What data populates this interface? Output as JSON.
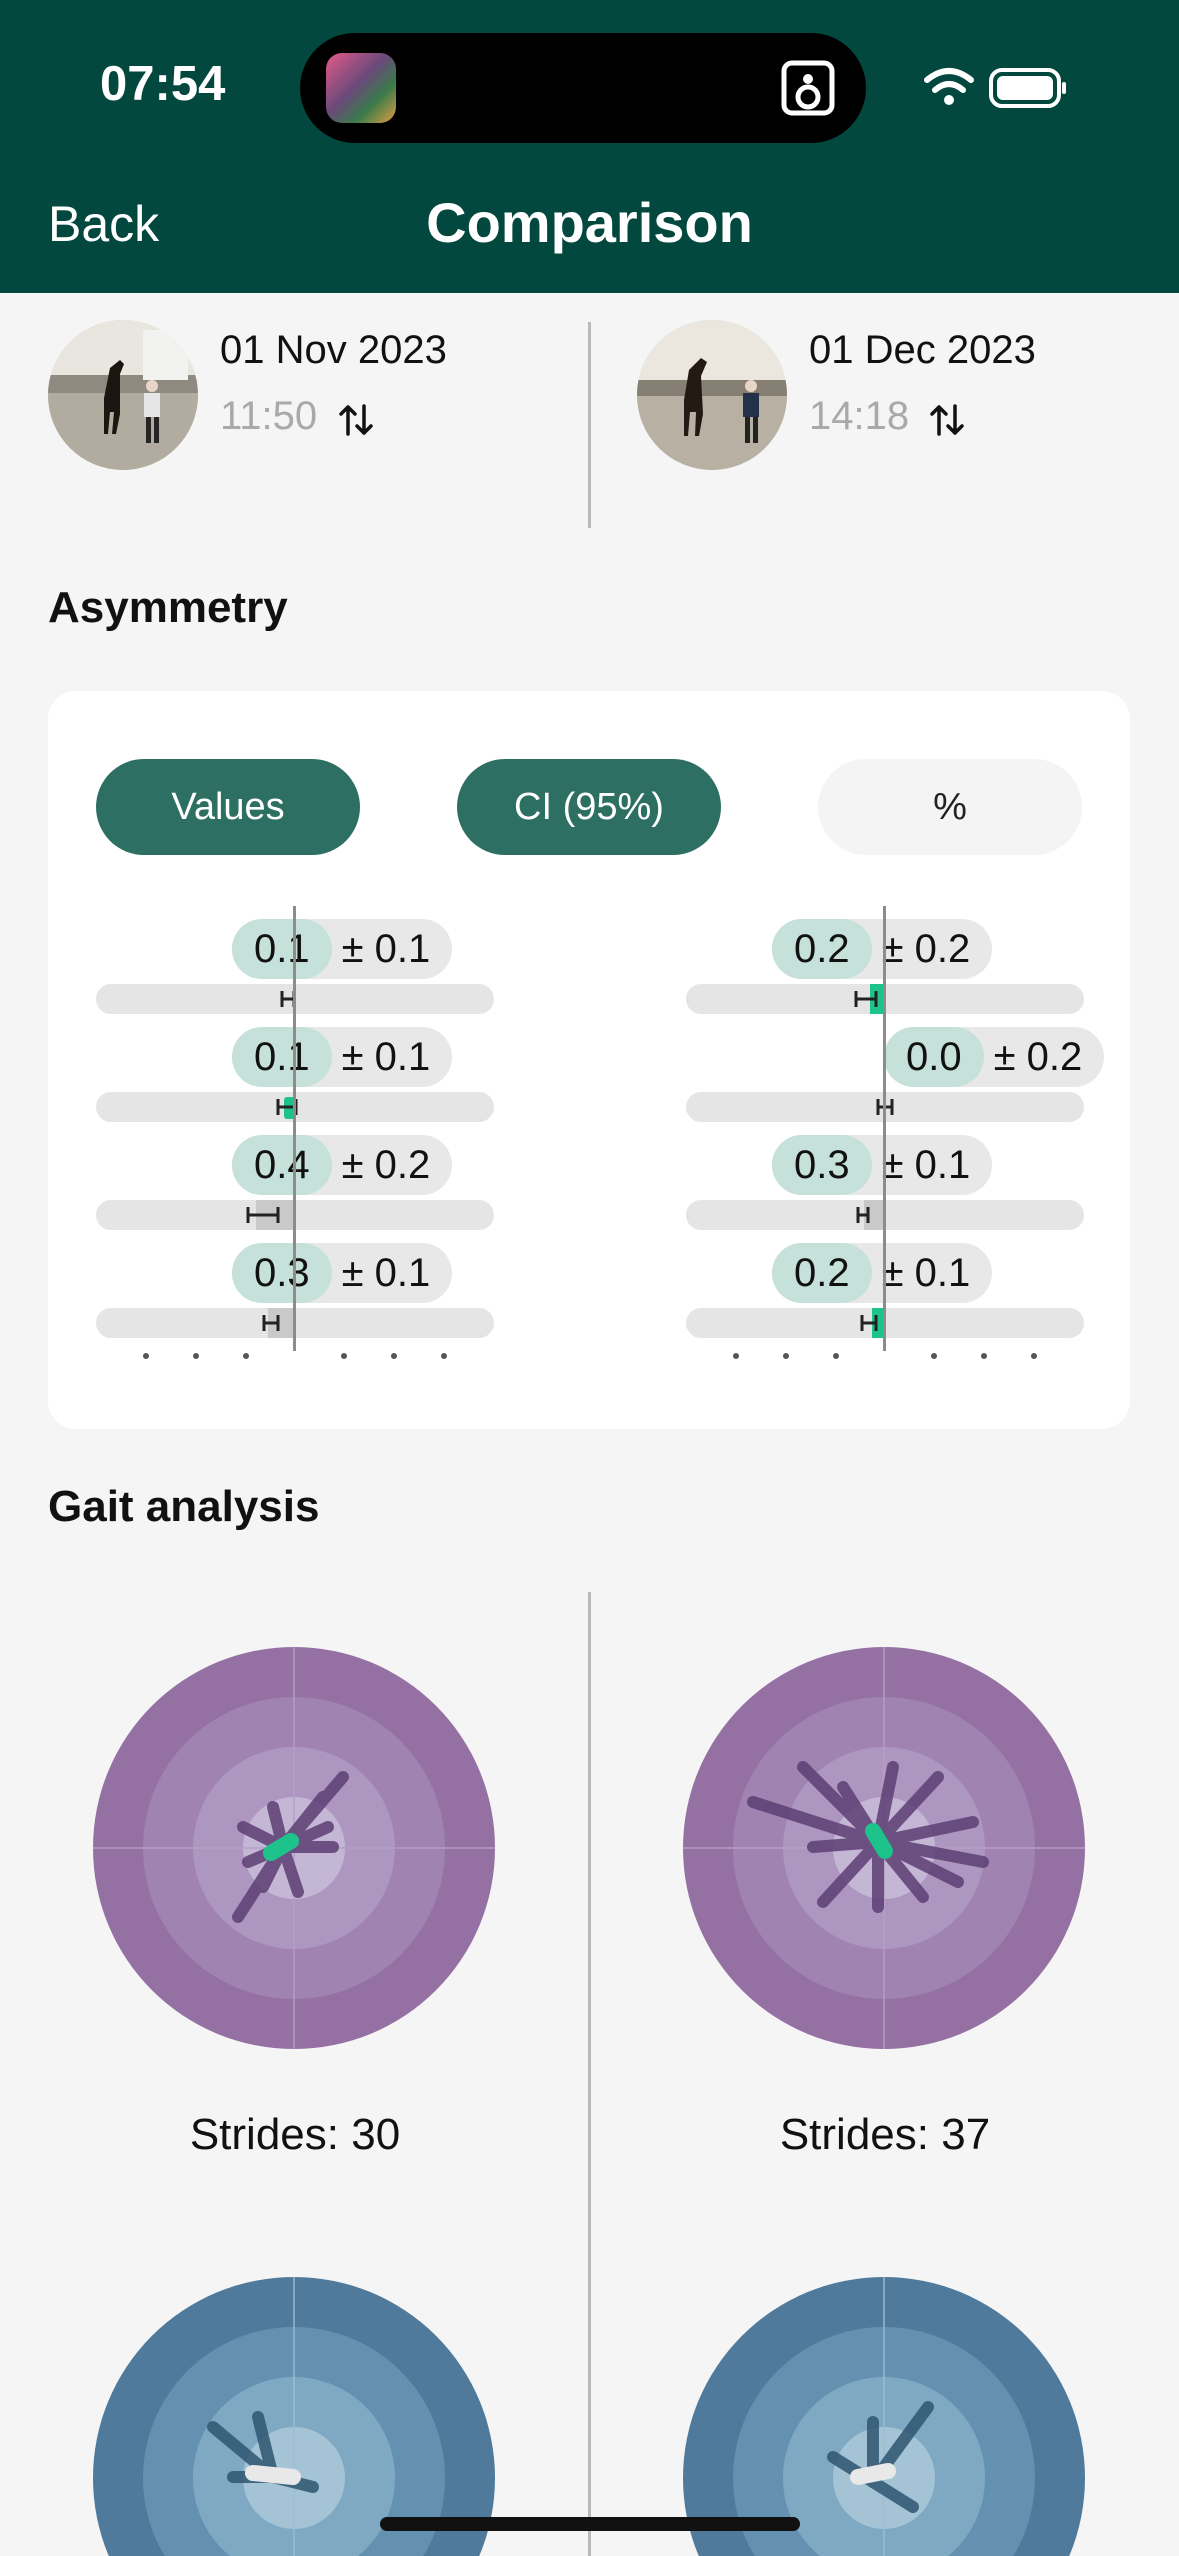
{
  "status": {
    "time": "07:54"
  },
  "nav": {
    "back": "Back",
    "title": "Comparison"
  },
  "sessions": [
    {
      "date": "01 Nov 2023",
      "time": "11:50",
      "swap_icon": "swap-vertical-icon"
    },
    {
      "date": "01 Dec 2023",
      "time": "14:18",
      "swap_icon": "swap-vertical-icon"
    }
  ],
  "asymmetry": {
    "title": "Asymmetry",
    "toggles": [
      {
        "label": "Values",
        "active": true
      },
      {
        "label": "CI (95%)",
        "active": true
      },
      {
        "label": "%",
        "active": false
      }
    ],
    "left": [
      {
        "value": "0.1",
        "ci": "± 0.1"
      },
      {
        "value": "0.1",
        "ci": "± 0.1"
      },
      {
        "value": "0.4",
        "ci": "± 0.2"
      },
      {
        "value": "0.3",
        "ci": "± 0.1"
      }
    ],
    "right": [
      {
        "value": "0.2",
        "ci": "± 0.2"
      },
      {
        "value": "0.0",
        "ci": "± 0.2"
      },
      {
        "value": "0.3",
        "ci": "± 0.1"
      },
      {
        "value": "0.2",
        "ci": "± 0.1"
      }
    ]
  },
  "gait": {
    "title": "Gait analysis",
    "left": {
      "strides": "Strides: 30"
    },
    "right": {
      "strides": "Strides: 37"
    }
  },
  "colors": {
    "header": "#02483f",
    "pill_active": "#2d6f63",
    "badge_value": "#c6e0da",
    "accent_green": "#1ec28b",
    "purple_outer": "#9570a3",
    "blue_outer": "#4f7a9b"
  }
}
